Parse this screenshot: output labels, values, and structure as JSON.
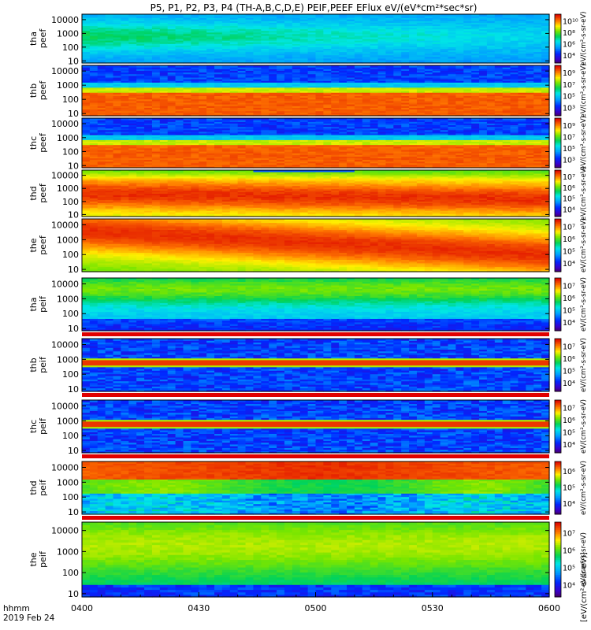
{
  "chart_data": {
    "type": "heatmap",
    "title": "P5, P1, P2, P3, P4 (TH-A,B,C,D,E) PEIF,PEEF EFlux eV/(eV*cm²*sec*sr)",
    "x_ticks": [
      "0400",
      "0430",
      "0500",
      "0530",
      "0600"
    ],
    "x_range": [
      "04:00",
      "06:00"
    ],
    "x_annotation_line1": "hhmm",
    "x_annotation_line2": "2019 Feb 24",
    "y_ticks": [
      "10",
      "100",
      "1000",
      "10000"
    ],
    "y_range_eV": [
      7,
      25000
    ],
    "y_scale": "log",
    "colorbar_unit": "eV/(cm²-s-sr-eV)",
    "colorbar_label_bottom": "[eV/(cm²-s-sr-eV)]",
    "colormap": "rainbow (purple-blue-cyan-green-yellow-red)",
    "panels": [
      {
        "name": "tha peef",
        "label1": "tha",
        "label2": "peef",
        "cbar_ticks": [
          "10⁴",
          "10⁶",
          "10⁸",
          "10¹⁰"
        ],
        "cbar_exponent_range": [
          3,
          11
        ],
        "pattern": "ambient"
      },
      {
        "name": "thb peef",
        "label1": "thb",
        "label2": "peef",
        "cbar_ticks": [
          "10³",
          "10⁵",
          "10⁷",
          "10⁹"
        ],
        "cbar_exponent_range": [
          2,
          10
        ],
        "pattern": "noisy_high_flat"
      },
      {
        "name": "thc peef",
        "label1": "thc",
        "label2": "peef",
        "cbar_ticks": [
          "10³",
          "10⁵",
          "10⁷",
          "10⁹"
        ],
        "cbar_exponent_range": [
          2,
          10
        ],
        "pattern": "noisy_high_flat"
      },
      {
        "name": "thd peef",
        "label1": "thd",
        "label2": "peef",
        "cbar_ticks": [
          "10⁴",
          "10⁵",
          "10⁶",
          "10⁷"
        ],
        "cbar_exponent_range": [
          3.5,
          7.5
        ],
        "pattern": "plasma_sheet_e"
      },
      {
        "name": "the peef",
        "label1": "the",
        "label2": "peef",
        "cbar_ticks": [
          "10⁴",
          "10⁵",
          "10⁶",
          "10⁷"
        ],
        "cbar_exponent_range": [
          3.5,
          7.5
        ],
        "pattern": "plasma_sheet_e2"
      },
      {
        "name": "tha peif",
        "label1": "tha",
        "label2": "peif",
        "cbar_ticks": [
          "10⁴",
          "10⁵",
          "10⁶",
          "10⁷"
        ],
        "cbar_exponent_range": [
          3.5,
          7.5
        ],
        "pattern": "ion_quiet"
      },
      {
        "name": "thb peif",
        "label1": "thb",
        "label2": "peif",
        "cbar_ticks": [
          "10⁴",
          "10⁵",
          "10⁶",
          "10⁷"
        ],
        "cbar_exponent_range": [
          3.5,
          7.5
        ],
        "pattern": "ion_bands"
      },
      {
        "name": "thc peif",
        "label1": "thc",
        "label2": "peif",
        "cbar_ticks": [
          "10⁴",
          "10⁵",
          "10⁶",
          "10⁷"
        ],
        "cbar_exponent_range": [
          3.5,
          7.5
        ],
        "pattern": "ion_bands"
      },
      {
        "name": "thd peif",
        "label1": "thd",
        "label2": "peif",
        "cbar_ticks": [
          "10⁴",
          "10⁵",
          "10⁶"
        ],
        "cbar_exponent_range": [
          3.5,
          6.5
        ],
        "pattern": "ion_hot"
      },
      {
        "name": "the peif",
        "label1": "the",
        "label2": "peif",
        "cbar_ticks": [
          "10⁴",
          "10⁵",
          "10⁶",
          "10⁷"
        ],
        "cbar_exponent_range": [
          3.5,
          7.5
        ],
        "pattern": "ion_quiet2"
      }
    ]
  }
}
